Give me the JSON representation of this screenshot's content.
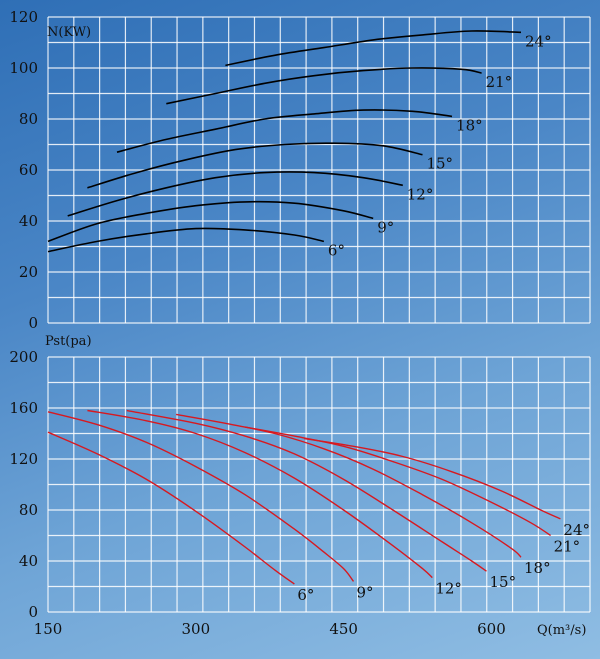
{
  "chart_data": [
    {
      "type": "line",
      "title": "",
      "ylabel": "N(KW)",
      "xlim": [
        150,
        700
      ],
      "ylim": [
        0,
        120
      ],
      "y_ticks": [
        "0",
        "20",
        "40",
        "60",
        "80",
        "100",
        "120"
      ],
      "grid": true,
      "line_color": "#000000",
      "series": [
        {
          "name": "6°",
          "points": [
            [
              150,
              28
            ],
            [
              200,
              32
            ],
            [
              250,
              35
            ],
            [
              300,
              37
            ],
            [
              350,
              36.5
            ],
            [
              400,
              34.5
            ],
            [
              430,
              32
            ]
          ]
        },
        {
          "name": "9°",
          "points": [
            [
              150,
              32
            ],
            [
              200,
              39
            ],
            [
              250,
              43
            ],
            [
              300,
              46
            ],
            [
              350,
              47.5
            ],
            [
              400,
              47
            ],
            [
              450,
              44
            ],
            [
              480,
              41
            ]
          ]
        },
        {
          "name": "12°",
          "points": [
            [
              170,
              42
            ],
            [
              220,
              48
            ],
            [
              270,
              53
            ],
            [
              320,
              57
            ],
            [
              370,
              59
            ],
            [
              420,
              59
            ],
            [
              470,
              57
            ],
            [
              510,
              54
            ]
          ]
        },
        {
          "name": "15°",
          "points": [
            [
              190,
              53
            ],
            [
              240,
              59
            ],
            [
              290,
              64
            ],
            [
              340,
              68
            ],
            [
              390,
              70
            ],
            [
              440,
              70.5
            ],
            [
              490,
              69.5
            ],
            [
              530,
              66
            ]
          ]
        },
        {
          "name": "18°",
          "points": [
            [
              220,
              67
            ],
            [
              270,
              72
            ],
            [
              320,
              76
            ],
            [
              370,
              80
            ],
            [
              420,
              82
            ],
            [
              470,
              83.5
            ],
            [
              520,
              83
            ],
            [
              560,
              81
            ]
          ]
        },
        {
          "name": "21°",
          "points": [
            [
              270,
              86
            ],
            [
              320,
              90
            ],
            [
              370,
              94
            ],
            [
              420,
              97
            ],
            [
              470,
              99
            ],
            [
              520,
              100
            ],
            [
              570,
              99.5
            ],
            [
              590,
              98
            ]
          ]
        },
        {
          "name": "24°",
          "points": [
            [
              330,
              101
            ],
            [
              380,
              105
            ],
            [
              430,
              108
            ],
            [
              480,
              111
            ],
            [
              530,
              113
            ],
            [
              580,
              114.5
            ],
            [
              630,
              114
            ]
          ]
        }
      ]
    },
    {
      "type": "line",
      "title": "",
      "ylabel": "Pst(pa)",
      "xlabel": "Q(m³/s)",
      "xlim": [
        150,
        700
      ],
      "ylim": [
        0,
        200
      ],
      "x_ticks": [
        "150",
        "300",
        "450",
        "600"
      ],
      "y_ticks": [
        "0",
        "40",
        "80",
        "120",
        "160",
        "200"
      ],
      "grid": true,
      "line_color": "#d71920",
      "series": [
        {
          "name": "6°",
          "points": [
            [
              150,
              141
            ],
            [
              200,
              124
            ],
            [
              250,
              104
            ],
            [
              300,
              79
            ],
            [
              350,
              51
            ],
            [
              380,
              33
            ],
            [
              400,
              22
            ]
          ]
        },
        {
          "name": "9°",
          "points": [
            [
              150,
              157
            ],
            [
              200,
              147
            ],
            [
              250,
              133
            ],
            [
              300,
              114
            ],
            [
              350,
              92
            ],
            [
              400,
              65
            ],
            [
              430,
              47
            ],
            [
              450,
              34
            ],
            [
              460,
              24
            ]
          ]
        },
        {
          "name": "12°",
          "points": [
            [
              190,
              158
            ],
            [
              250,
              150
            ],
            [
              300,
              140
            ],
            [
              350,
              125
            ],
            [
              400,
              105
            ],
            [
              450,
              80
            ],
            [
              500,
              52
            ],
            [
              530,
              34
            ],
            [
              540,
              27
            ]
          ]
        },
        {
          "name": "15°",
          "points": [
            [
              230,
              158
            ],
            [
              300,
              148
            ],
            [
              350,
              138
            ],
            [
              400,
              124
            ],
            [
              450,
              104
            ],
            [
              500,
              80
            ],
            [
              550,
              55
            ],
            [
              580,
              40
            ],
            [
              595,
              32
            ]
          ]
        },
        {
          "name": "18°",
          "points": [
            [
              280,
              155
            ],
            [
              330,
              148
            ],
            [
              380,
              140
            ],
            [
              430,
              128
            ],
            [
              480,
              112
            ],
            [
              530,
              92
            ],
            [
              580,
              70
            ],
            [
              620,
              50
            ],
            [
              630,
              43
            ]
          ]
        },
        {
          "name": "21°",
          "points": [
            [
              350,
              145
            ],
            [
              400,
              138
            ],
            [
              450,
              130
            ],
            [
              500,
              118
            ],
            [
              550,
              104
            ],
            [
              600,
              86
            ],
            [
              640,
              70
            ],
            [
              660,
              60
            ]
          ]
        },
        {
          "name": "24°",
          "points": [
            [
              410,
              136
            ],
            [
              460,
              130
            ],
            [
              510,
              122
            ],
            [
              560,
              110
            ],
            [
              610,
              95
            ],
            [
              650,
              80
            ],
            [
              670,
              73
            ]
          ]
        }
      ]
    }
  ]
}
